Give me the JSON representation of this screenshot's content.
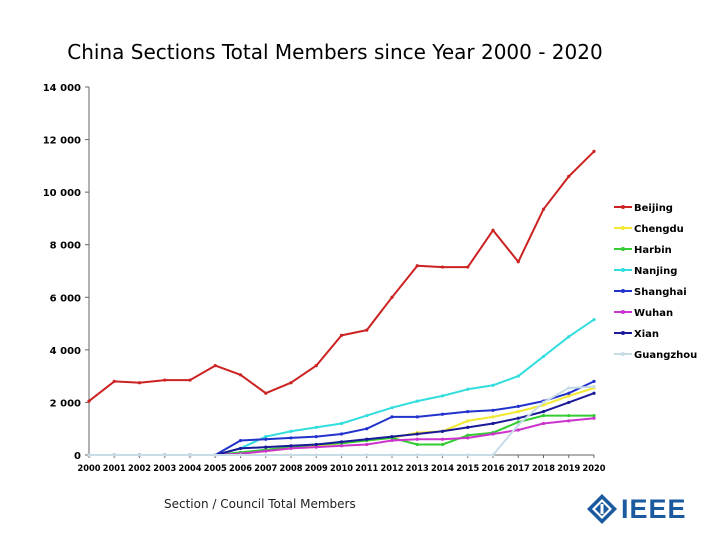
{
  "chart_data": {
    "type": "line",
    "title": "China Sections Total Members since Year 2000 - 2020",
    "xlabel": "",
    "ylabel": "",
    "x": [
      "2000",
      "2001",
      "2002",
      "2003",
      "2004",
      "2005",
      "2006",
      "2007",
      "2008",
      "2009",
      "2010",
      "2011",
      "2012",
      "2013",
      "2014",
      "2015",
      "2016",
      "2017",
      "2018",
      "2019",
      "2020"
    ],
    "ylim": [
      0,
      14000
    ],
    "yticks": [
      0,
      2000,
      4000,
      6000,
      8000,
      10000,
      12000,
      14000
    ],
    "ytick_labels": [
      "0",
      "2 000",
      "4 000",
      "6 000",
      "8 000",
      "10 000",
      "12 000",
      "14 000"
    ],
    "legend_position": "right",
    "series": [
      {
        "name": "Beijing",
        "color": "#cc2222",
        "values": [
          2050,
          2800,
          2750,
          2850,
          2850,
          3400,
          3050,
          2350,
          2750,
          3400,
          4550,
          4750,
          6000,
          7200,
          7150,
          7150,
          8550,
          7350,
          9350,
          10600,
          11550
        ]
      },
      {
        "name": "Chengdu",
        "color": "#f2e830",
        "values": [
          0,
          0,
          0,
          0,
          0,
          0,
          50,
          150,
          250,
          350,
          450,
          550,
          650,
          850,
          900,
          1300,
          1450,
          1650,
          1900,
          2250,
          2550
        ]
      },
      {
        "name": "Harbin",
        "color": "#33cc33",
        "values": [
          0,
          0,
          0,
          0,
          0,
          0,
          100,
          200,
          300,
          400,
          450,
          550,
          650,
          400,
          400,
          750,
          850,
          1250,
          1500,
          1500,
          1500
        ]
      },
      {
        "name": "Nanjing",
        "color": "#33dddd",
        "values": [
          0,
          0,
          0,
          0,
          0,
          0,
          250,
          700,
          900,
          1050,
          1200,
          1500,
          1800,
          2050,
          2250,
          2500,
          2650,
          3000,
          3750,
          4500,
          5150
        ]
      },
      {
        "name": "Shanghai",
        "color": "#2233cc",
        "values": [
          0,
          0,
          0,
          0,
          0,
          0,
          550,
          600,
          650,
          700,
          800,
          1000,
          1450,
          1450,
          1550,
          1650,
          1700,
          1850,
          2050,
          2350,
          2800
        ]
      },
      {
        "name": "Wuhan",
        "color": "#cc33cc",
        "values": [
          0,
          0,
          0,
          0,
          0,
          0,
          50,
          150,
          250,
          300,
          350,
          400,
          550,
          600,
          600,
          650,
          800,
          950,
          1200,
          1300,
          1400
        ]
      },
      {
        "name": "Xian",
        "color": "#1a1a99",
        "values": [
          0,
          0,
          0,
          0,
          0,
          0,
          250,
          300,
          350,
          400,
          500,
          600,
          700,
          800,
          900,
          1050,
          1200,
          1400,
          1650,
          2000,
          2350
        ]
      },
      {
        "name": "Guangzhou",
        "color": "#c8dce6",
        "values": [
          0,
          0,
          0,
          0,
          0,
          0,
          0,
          0,
          0,
          0,
          0,
          0,
          0,
          0,
          0,
          0,
          0,
          1150,
          2000,
          2550,
          2600
        ]
      }
    ]
  },
  "footer": "Section / Council Total Members",
  "logo_text": "IEEE"
}
